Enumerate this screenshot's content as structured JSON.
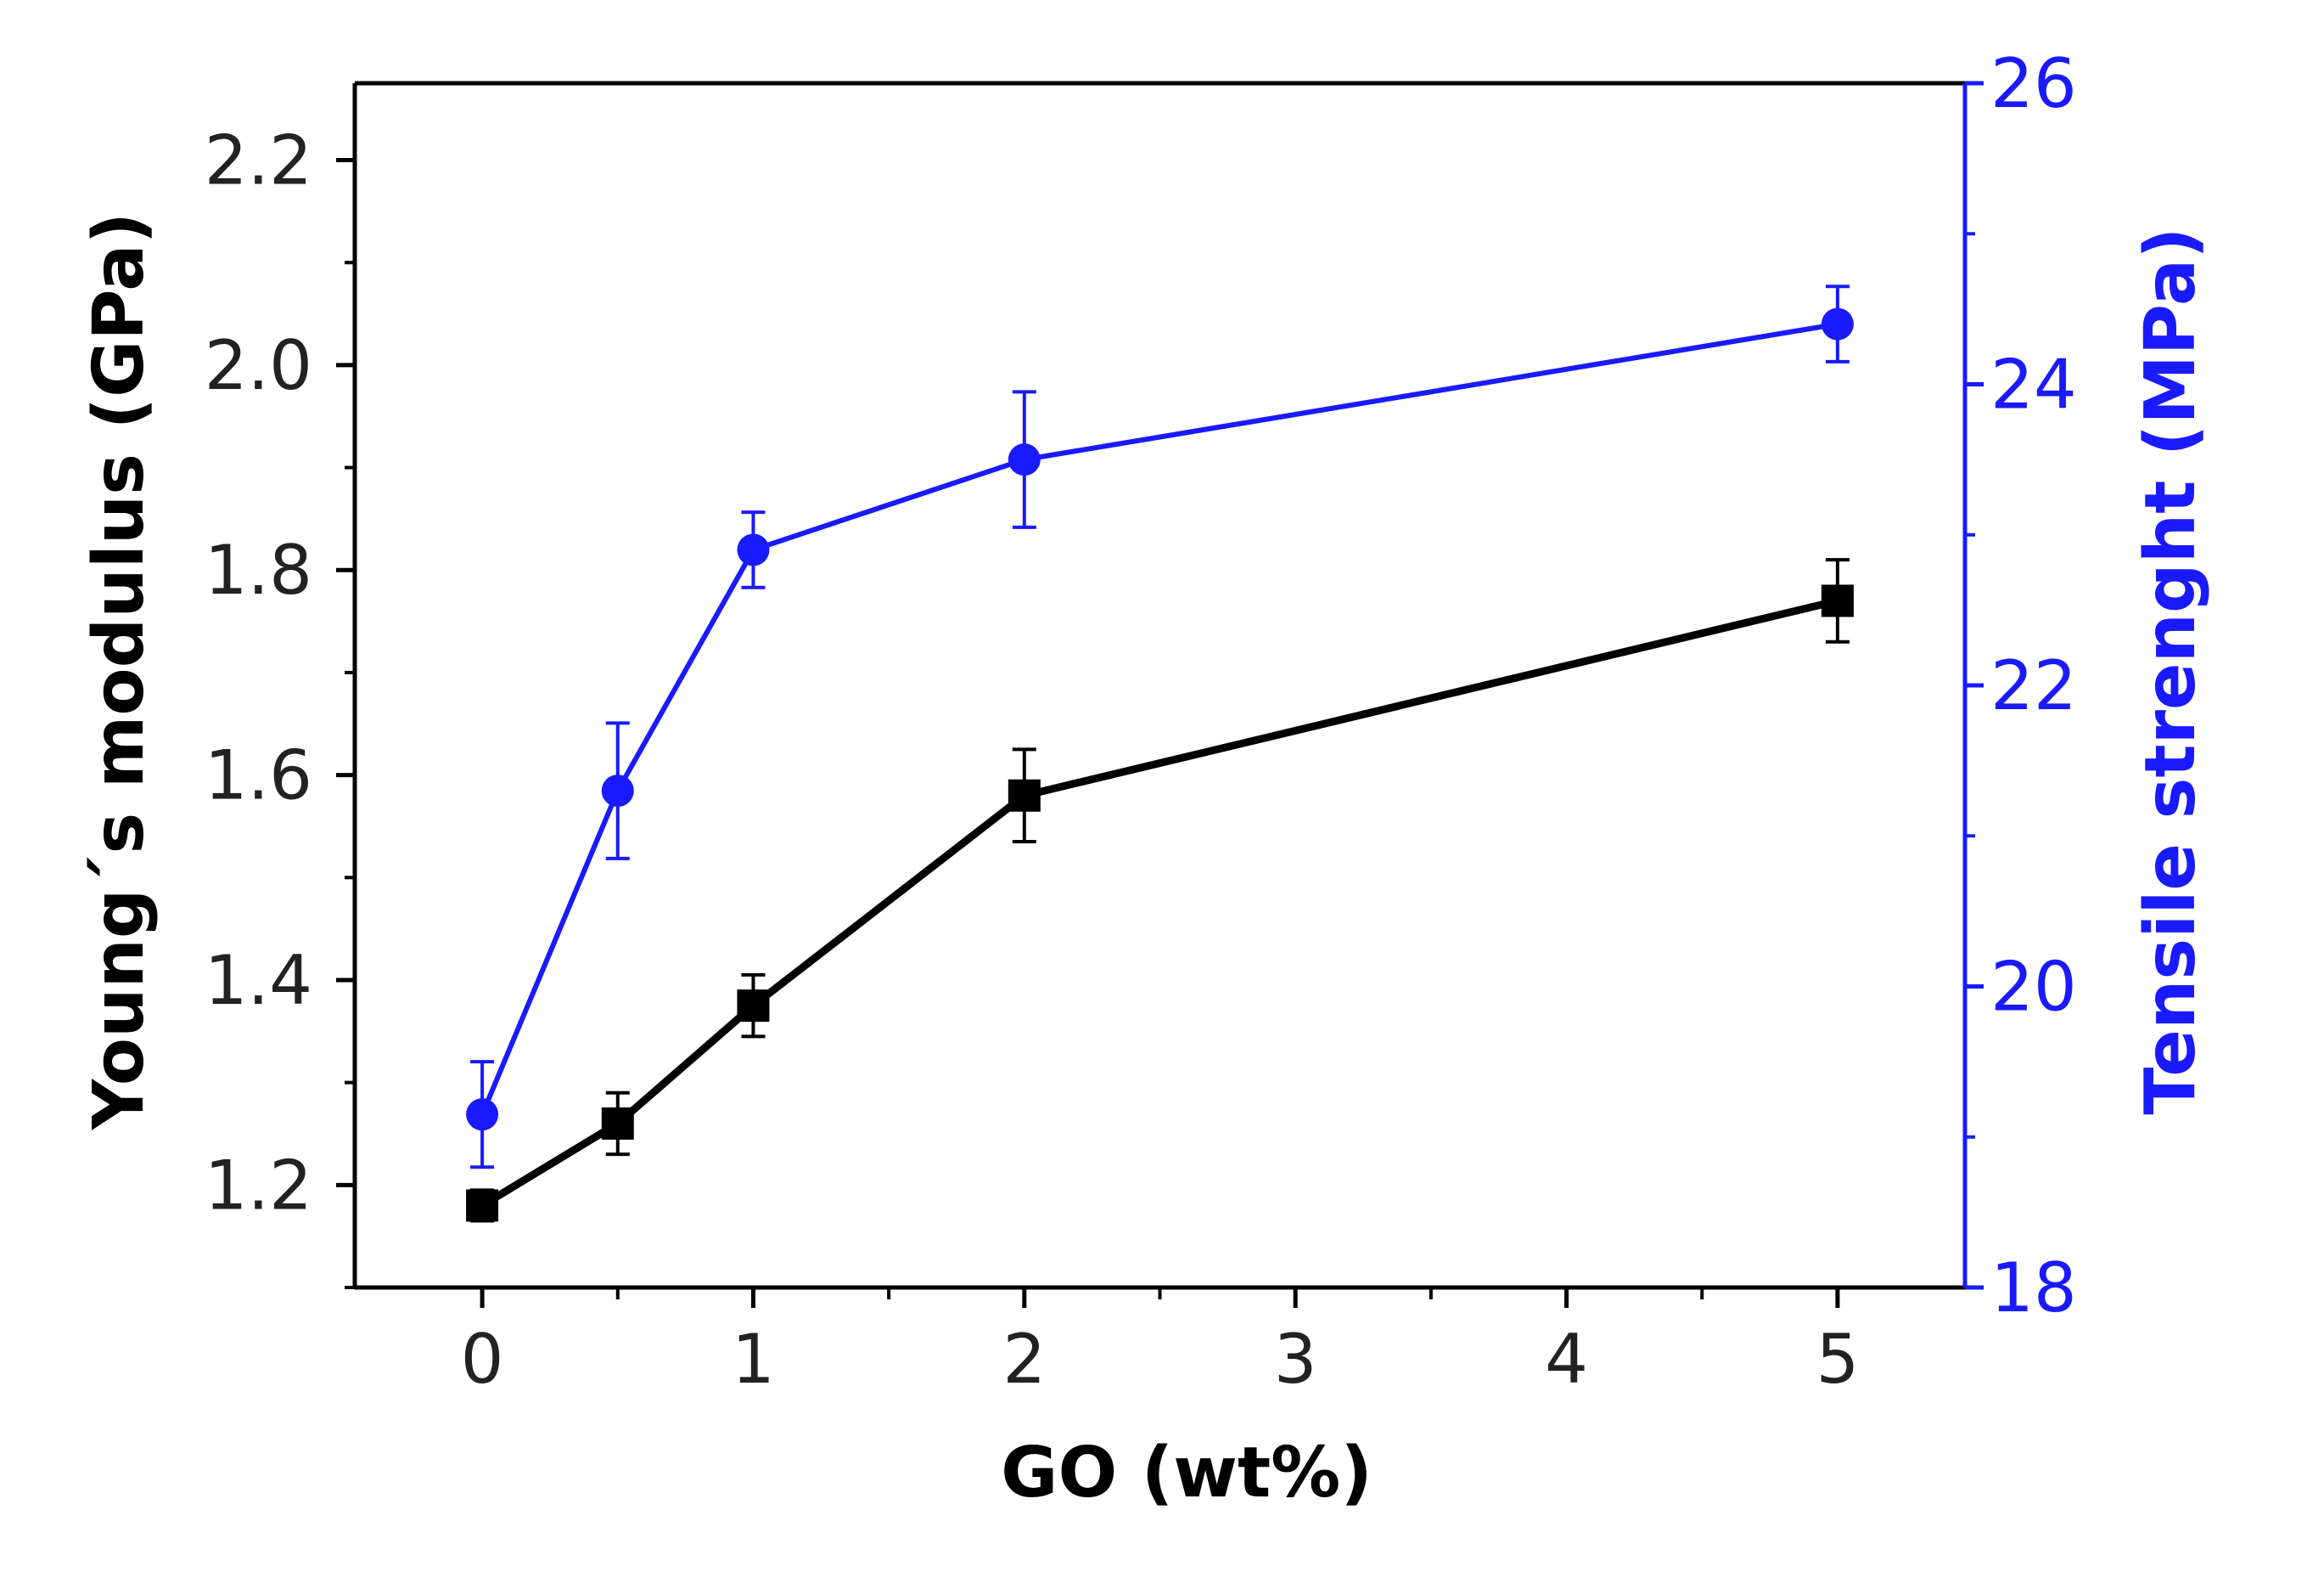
{
  "chart_data": {
    "type": "line",
    "title": "",
    "xlabel": "GO (wt%)",
    "ylabel_left": "Young´s modulus (GPa)",
    "ylabel_right": "Tensile strenght (MPa)",
    "x_ticks": [
      0,
      1,
      2,
      3,
      4,
      5
    ],
    "x_tick_labels": [
      "0",
      "1",
      "2",
      "3",
      "4",
      "5"
    ],
    "xlim": [
      -0.47,
      5.47
    ],
    "ylim_left": [
      1.1,
      2.275
    ],
    "ylim_right": [
      18,
      26
    ],
    "left_ticks": [
      1.2,
      1.4,
      1.6,
      1.8,
      2.0,
      2.2
    ],
    "left_tick_labels": [
      "1.2",
      "1.4",
      "1.6",
      "1.8",
      "2.0",
      "2.2"
    ],
    "right_ticks": [
      18,
      20,
      22,
      24,
      26
    ],
    "right_tick_labels": [
      "18",
      "20",
      "22",
      "24",
      "26"
    ],
    "series": [
      {
        "name": "Young´s modulus",
        "axis": "left",
        "marker": "square",
        "color": "#000000",
        "x": [
          0,
          0.5,
          1,
          2,
          5
        ],
        "values": [
          1.18,
          1.26,
          1.375,
          1.58,
          1.77
        ],
        "errors": [
          0.015,
          0.03,
          0.03,
          0.045,
          0.04
        ]
      },
      {
        "name": "Tensile strenght",
        "axis": "right",
        "marker": "circle",
        "color": "#1a1aff",
        "x": [
          0,
          0.5,
          1,
          2,
          5
        ],
        "values": [
          19.15,
          21.3,
          22.9,
          23.5,
          24.4
        ],
        "errors": [
          0.35,
          0.45,
          0.25,
          0.45,
          0.25
        ]
      }
    ]
  },
  "colors": {
    "right_axis": "#1a1aff",
    "left_axis": "#000000"
  }
}
